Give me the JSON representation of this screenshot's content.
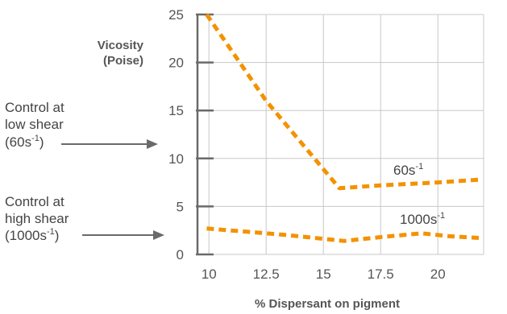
{
  "chart_data": {
    "type": "line",
    "title": "",
    "ylabel": "Vicosity (Poise)",
    "ylabel_lines": [
      "Vicosity",
      "(Poise)"
    ],
    "xlabel": "% Dispersant on pigment",
    "xlim": [
      9.5,
      22
    ],
    "ylim": [
      0,
      25
    ],
    "xticks": [
      10,
      12.5,
      15,
      17.5,
      20
    ],
    "xtick_labels": [
      "10",
      "12.5",
      "15",
      "17.5",
      "20"
    ],
    "yticks": [
      0,
      5,
      10,
      15,
      20,
      25
    ],
    "ytick_labels": [
      "0",
      "5",
      "10",
      "15",
      "20",
      "25"
    ],
    "grid": true,
    "color": "#F39200",
    "series": [
      {
        "label_base": "60s",
        "label_sup": "-1",
        "x": [
          9.9,
          12.5,
          15.7,
          17.5,
          20,
          21.9
        ],
        "y": [
          25,
          16,
          6.9,
          7.2,
          7.5,
          7.8
        ]
      },
      {
        "label_base": "1000s",
        "label_sup": "-1",
        "x": [
          9.9,
          12,
          13.5,
          15.9,
          17.5,
          19.3,
          20.5,
          21.9
        ],
        "y": [
          2.7,
          2.3,
          2.0,
          1.4,
          1.8,
          2.2,
          1.9,
          1.7
        ]
      }
    ],
    "annotations": [
      {
        "lines": [
          "Control at",
          "low shear"
        ],
        "paren_open": "(60s",
        "sup": "-1",
        "paren_close": ")",
        "y": 11.6
      },
      {
        "lines": [
          "Control at",
          "high shear"
        ],
        "paren_open": "(1000s",
        "sup": "-1",
        "paren_close": ")",
        "y": 1.9
      }
    ]
  }
}
